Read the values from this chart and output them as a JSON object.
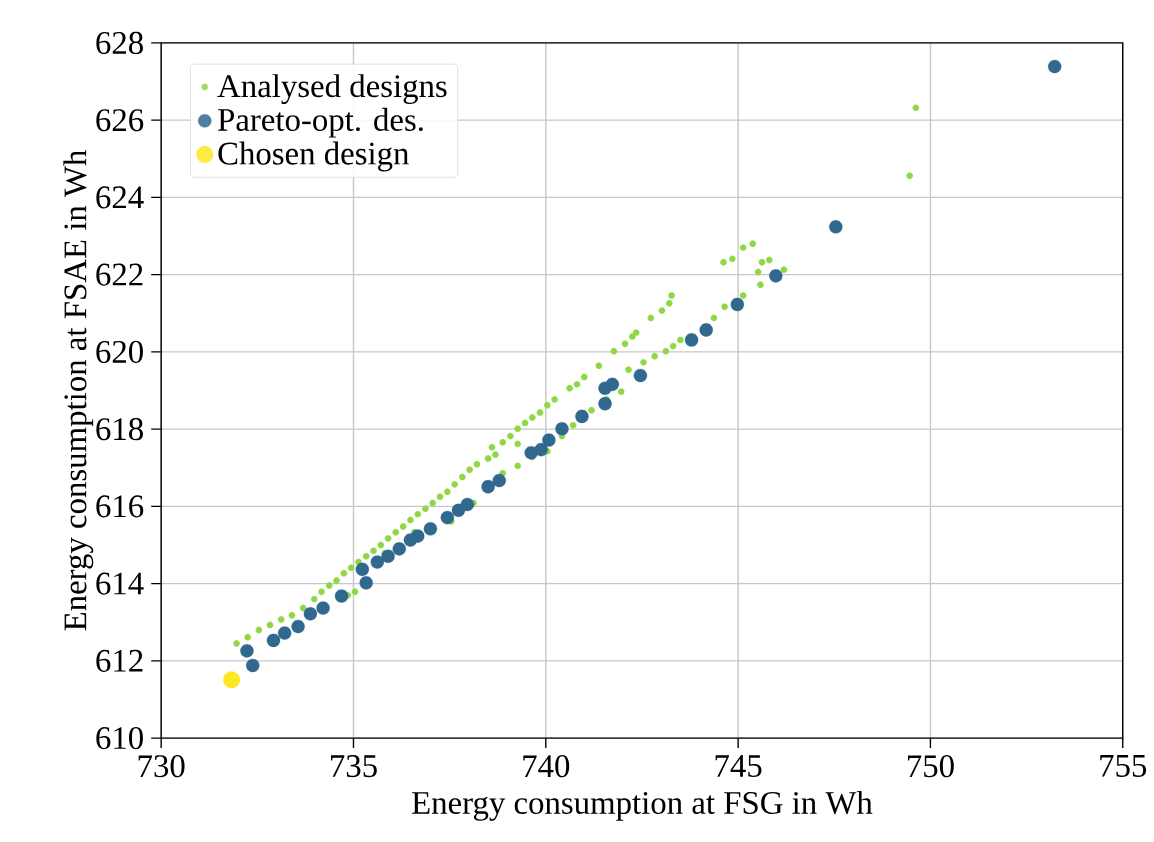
{
  "chart_data": {
    "type": "scatter",
    "xlabel": "Energy consumption at FSG in Wh",
    "ylabel": "Energy consumption at FSAE in Wh",
    "xlim": [
      730,
      755
    ],
    "xticks": [
      730,
      735,
      740,
      745,
      750,
      755
    ],
    "ylim": [
      610,
      628
    ],
    "yticks": [
      610,
      612,
      614,
      616,
      618,
      620,
      622,
      624,
      626,
      628
    ],
    "grid": true,
    "legend": "top left",
    "series": [
      {
        "name": "Analysed designs",
        "color": "#8fd744",
        "x": [
          731.96,
          732.25,
          732.54,
          732.83,
          733.12,
          733.4,
          733.69,
          733.98,
          734.17,
          734.37,
          734.56,
          734.75,
          734.94,
          735.13,
          735.33,
          735.52,
          735.71,
          735.9,
          736.1,
          736.29,
          736.48,
          736.67,
          736.87,
          737.06,
          737.25,
          737.44,
          737.63,
          737.83,
          738.02,
          738.21,
          734.85,
          735.04,
          735.81,
          736.58,
          737.54,
          738.12,
          738.88,
          739.27,
          739.65,
          740.04,
          740.42,
          740.71,
          741.19,
          741.58,
          741.96,
          738.5,
          738.6,
          738.69,
          738.88,
          739.08,
          739.27,
          739.27,
          739.46,
          739.65,
          739.85,
          740.04,
          740.23,
          740.62,
          740.81,
          741.0,
          741.38,
          741.77,
          742.06,
          742.25,
          742.35,
          742.73,
          743.02,
          743.21,
          743.27,
          742.15,
          742.54,
          742.83,
          743.12,
          743.31,
          743.5,
          744.37,
          744.65,
          745.13,
          744.62,
          744.85,
          745.13,
          745.38,
          745.62,
          745.81,
          745.52,
          745.58,
          746.19,
          749.62,
          749.46
        ],
        "values": [
          612.45,
          612.61,
          612.8,
          612.93,
          613.07,
          613.18,
          613.37,
          613.6,
          613.79,
          613.95,
          614.08,
          614.27,
          614.41,
          614.56,
          614.71,
          614.85,
          615.0,
          615.17,
          615.33,
          615.48,
          615.65,
          615.8,
          615.94,
          616.09,
          616.25,
          616.38,
          616.57,
          616.76,
          616.95,
          617.09,
          613.7,
          613.79,
          614.79,
          615.33,
          615.61,
          616.09,
          616.86,
          617.05,
          617.28,
          617.43,
          617.82,
          618.1,
          618.49,
          618.77,
          618.97,
          617.24,
          617.53,
          617.34,
          617.66,
          617.82,
          618.01,
          617.62,
          618.16,
          618.3,
          618.43,
          618.62,
          618.77,
          619.06,
          619.16,
          619.35,
          619.64,
          620.02,
          620.21,
          620.4,
          620.5,
          620.88,
          621.07,
          621.26,
          621.46,
          619.54,
          619.73,
          619.89,
          620.02,
          620.15,
          620.31,
          620.88,
          621.17,
          621.46,
          622.32,
          622.41,
          622.7,
          622.8,
          622.32,
          622.38,
          622.07,
          621.74,
          622.13,
          626.32,
          624.56
        ]
      },
      {
        "name": "Pareto-opt. des.",
        "color": "#31688e",
        "x": [
          732.23,
          732.38,
          732.92,
          733.21,
          733.56,
          733.88,
          734.21,
          734.69,
          735.23,
          735.33,
          735.62,
          735.9,
          736.19,
          736.48,
          736.67,
          737.0,
          737.44,
          737.73,
          737.96,
          738.5,
          738.79,
          739.62,
          739.88,
          740.08,
          740.42,
          740.94,
          741.54,
          741.54,
          741.73,
          742.46,
          743.79,
          744.17,
          744.98,
          745.98,
          747.54,
          753.23
        ],
        "values": [
          612.26,
          611.88,
          612.53,
          612.72,
          612.89,
          613.22,
          613.37,
          613.68,
          614.37,
          614.02,
          614.56,
          614.71,
          614.9,
          615.13,
          615.23,
          615.42,
          615.71,
          615.9,
          616.05,
          616.51,
          616.67,
          617.39,
          617.47,
          617.72,
          618.01,
          618.33,
          618.66,
          619.06,
          619.16,
          619.39,
          620.31,
          620.57,
          621.23,
          621.97,
          623.24,
          627.39
        ]
      },
      {
        "name": "Chosen design",
        "color": "#fde725",
        "x": [
          731.83
        ],
        "values": [
          611.51
        ]
      }
    ]
  }
}
